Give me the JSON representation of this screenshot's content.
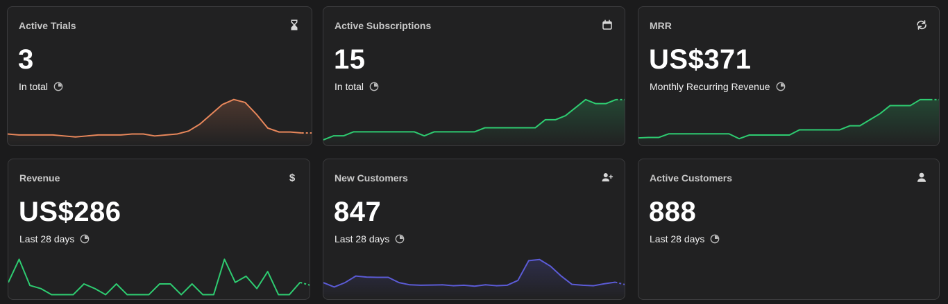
{
  "colors": {
    "orange": "#e8875b",
    "green": "#2ecc71",
    "blue": "#5b5bd6"
  },
  "cards": [
    {
      "title": "Active Trials",
      "value": "3",
      "subtitle": "In total",
      "icon": "hourglass-icon",
      "series": [
        2.6,
        2.5,
        2.5,
        2.5,
        2.5,
        2.4,
        2.3,
        2.4,
        2.5,
        2.5,
        2.5,
        2.6,
        2.6,
        2.4,
        2.5,
        2.6,
        2.9,
        3.6,
        4.6,
        5.6,
        6.1,
        5.8,
        4.6,
        3.2,
        2.8,
        2.8,
        2.7,
        2.7
      ]
    },
    {
      "title": "Active Subscriptions",
      "value": "15",
      "subtitle": "In total",
      "icon": "calendar-icon",
      "series": [
        0,
        1,
        1,
        2,
        2,
        2,
        2,
        2,
        2,
        2,
        1,
        2,
        2,
        2,
        2,
        2,
        3,
        3,
        3,
        3,
        3,
        3,
        5,
        5,
        6,
        8,
        10,
        9,
        9,
        10,
        10
      ]
    },
    {
      "title": "MRR",
      "value": "US$371",
      "subtitle": "Monthly Recurring Revenue",
      "icon": "refresh-icon",
      "series": [
        0.5,
        0.6,
        0.6,
        1.5,
        1.5,
        1.5,
        1.5,
        1.5,
        1.5,
        1.5,
        0.3,
        1.2,
        1.2,
        1.2,
        1.2,
        1.2,
        2.5,
        2.5,
        2.5,
        2.5,
        2.5,
        3.5,
        3.5,
        5,
        6.5,
        8.5,
        8.5,
        8.5,
        10,
        10,
        10
      ]
    },
    {
      "title": "Revenue",
      "value": "US$286",
      "subtitle": "Last 28 days",
      "icon": "dollar-icon",
      "series": [
        10,
        25,
        8,
        6,
        2,
        2,
        2,
        9,
        6,
        2,
        9,
        2,
        2,
        2,
        9,
        9,
        2,
        9,
        2,
        2,
        25,
        10,
        14,
        6,
        17,
        2,
        2,
        10,
        8
      ]
    },
    {
      "title": "New Customers",
      "value": "847",
      "subtitle": "Last 28 days",
      "icon": "user-plus-icon",
      "series": [
        5,
        3,
        5,
        8,
        7.5,
        7.4,
        7.4,
        5,
        4,
        3.8,
        3.9,
        4,
        3.6,
        3.8,
        3.4,
        4,
        3.6,
        3.8,
        6,
        15,
        15.5,
        12.5,
        8,
        4.2,
        3.8,
        3.6,
        4.5,
        5.2,
        4
      ]
    },
    {
      "title": "Active Customers",
      "value": "888",
      "subtitle": "Last 28 days",
      "icon": "user-icon",
      "series": []
    }
  ]
}
